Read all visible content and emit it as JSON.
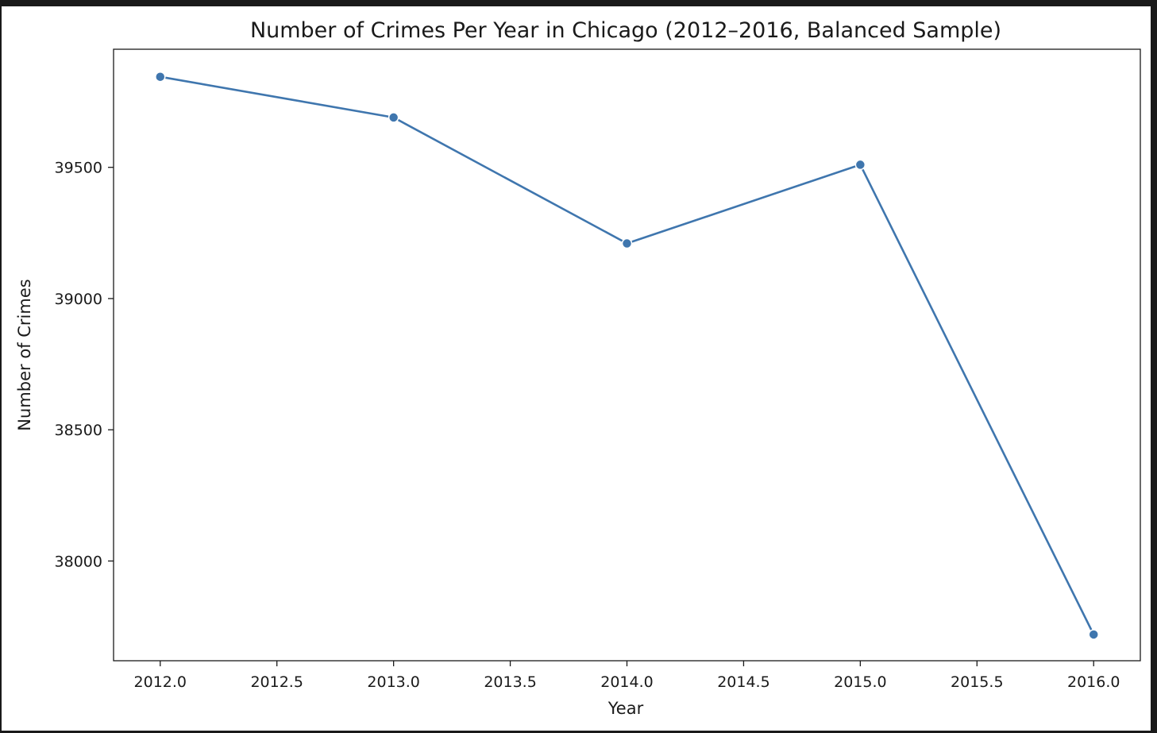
{
  "chart_data": {
    "type": "line",
    "title": "Number of Crimes Per Year in Chicago (2012–2016, Balanced Sample)",
    "xlabel": "Year",
    "ylabel": "Number of Crimes",
    "x": [
      2012,
      2013,
      2014,
      2015,
      2016
    ],
    "series": [
      {
        "values": [
          39845,
          39690,
          39210,
          39510,
          37720
        ],
        "color": "#3f76ae"
      }
    ],
    "xlim": [
      2011.8,
      2016.2
    ],
    "ylim": [
      37620,
      39950
    ],
    "x_ticks": [
      2012.0,
      2012.5,
      2013.0,
      2013.5,
      2014.0,
      2014.5,
      2015.0,
      2015.5,
      2016.0
    ],
    "x_tick_labels": [
      "2012.0",
      "2012.5",
      "2013.0",
      "2013.5",
      "2014.0",
      "2014.5",
      "2015.0",
      "2015.5",
      "2016.0"
    ],
    "y_ticks": [
      38000,
      38500,
      39000,
      39500
    ],
    "y_tick_labels": [
      "38000",
      "38500",
      "39000",
      "39500"
    ],
    "grid": false,
    "marker": "circle"
  }
}
